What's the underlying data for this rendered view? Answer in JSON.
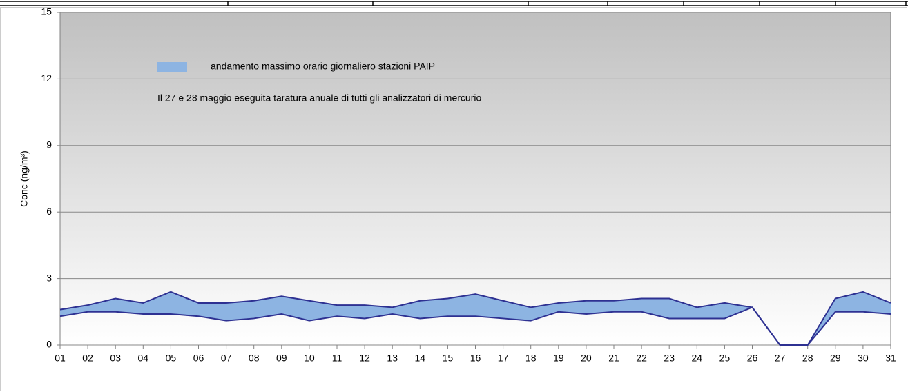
{
  "chart_data": {
    "type": "area_range",
    "y_label": "Conc (ng/m³)",
    "annotation": "Il 27 e 28 maggio eseguita taratura anuale di tutti gli analizzatori di mercurio",
    "categories": [
      "01",
      "02",
      "03",
      "04",
      "05",
      "06",
      "07",
      "08",
      "09",
      "10",
      "11",
      "12",
      "13",
      "14",
      "15",
      "16",
      "17",
      "18",
      "19",
      "20",
      "21",
      "22",
      "23",
      "24",
      "25",
      "26",
      "27",
      "28",
      "29",
      "30",
      "31"
    ],
    "series": [
      {
        "name": "andamento massimo orario giornaliero stazioni PAIP",
        "color": "#8db4e2",
        "line_color": "#2e3192",
        "values": [
          1.6,
          1.8,
          2.1,
          1.9,
          2.4,
          1.9,
          1.9,
          2.0,
          2.2,
          2.0,
          1.8,
          1.8,
          1.7,
          2.0,
          2.1,
          2.3,
          2.0,
          1.7,
          1.9,
          2.0,
          2.0,
          2.1,
          2.1,
          1.7,
          1.9,
          1.7,
          0,
          0,
          2.1,
          2.4,
          1.9
        ],
        "lower": [
          1.3,
          1.5,
          1.5,
          1.4,
          1.4,
          1.3,
          1.1,
          1.2,
          1.4,
          1.1,
          1.3,
          1.2,
          1.4,
          1.2,
          1.3,
          1.3,
          1.2,
          1.1,
          1.5,
          1.4,
          1.5,
          1.5,
          1.2,
          1.2,
          1.2,
          1.7,
          0,
          0,
          1.5,
          1.5,
          1.4
        ]
      }
    ],
    "ylim": [
      0,
      15
    ],
    "yticks": [
      0,
      3,
      6,
      9,
      12,
      15
    ],
    "grid": true
  }
}
